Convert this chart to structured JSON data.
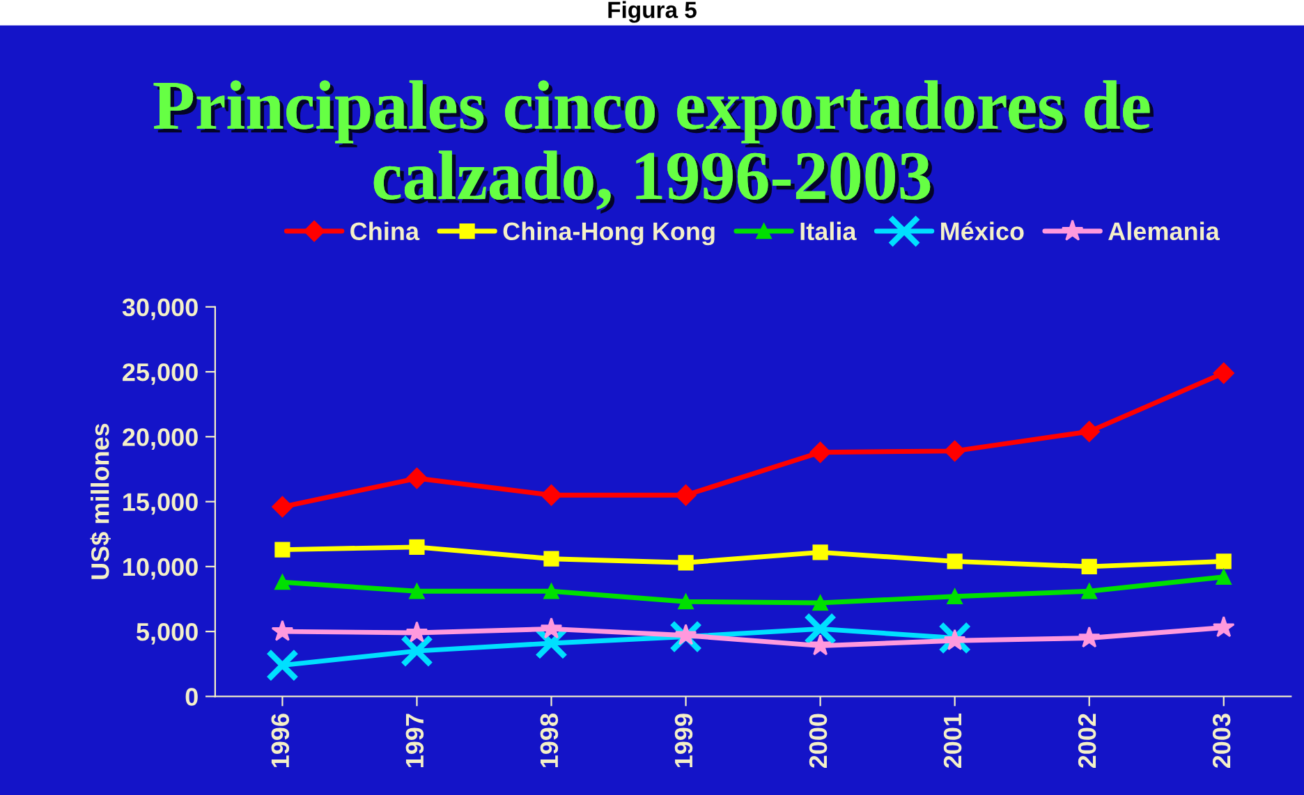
{
  "chart_data": {
    "type": "line",
    "title": "Principales cinco exportadores de\ncalzado, 1996-2003",
    "ylabel": "US$ millones",
    "annotations": [
      "Figura 5"
    ],
    "categories": [
      "1996",
      "1997",
      "1998",
      "1999",
      "2000",
      "2001",
      "2002",
      "2003"
    ],
    "series": [
      {
        "name": "China",
        "color": "#ff0000",
        "marker": "diamond",
        "values": [
          14600,
          16800,
          15500,
          15500,
          18800,
          18900,
          20400,
          24900
        ]
      },
      {
        "name": "China-Hong Kong",
        "color": "#ffff00",
        "marker": "square",
        "values": [
          11300,
          11500,
          10600,
          10300,
          11100,
          10400,
          10000,
          10400
        ]
      },
      {
        "name": "Italia",
        "color": "#00e000",
        "marker": "triangle",
        "values": [
          8800,
          8100,
          8100,
          7300,
          7200,
          7700,
          8100,
          9200
        ]
      },
      {
        "name": "México",
        "color": "#00e0ff",
        "marker": "cross",
        "values": [
          2400,
          3500,
          4100,
          4600,
          5200,
          4500,
          null,
          null
        ]
      },
      {
        "name": "Alemania",
        "color": "#ff99dd",
        "marker": "star",
        "values": [
          5000,
          4900,
          5200,
          4700,
          3900,
          4300,
          4500,
          5300
        ]
      }
    ],
    "ylim": [
      0,
      30000
    ],
    "yticks": [
      {
        "value": 0,
        "label": "0"
      },
      {
        "value": 5000,
        "label": "5,000"
      },
      {
        "value": 10000,
        "label": "10,000"
      },
      {
        "value": 15000,
        "label": "15,000"
      },
      {
        "value": 20000,
        "label": "20,000"
      },
      {
        "value": 25000,
        "label": "25,000"
      },
      {
        "value": 30000,
        "label": "30,000"
      }
    ],
    "grid": false,
    "legend": "top"
  }
}
